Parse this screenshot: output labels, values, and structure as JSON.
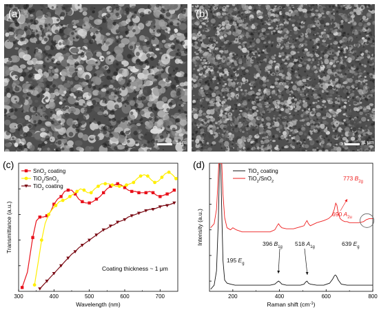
{
  "panels": {
    "a": {
      "label": "(a)",
      "scale_label": "1 μm"
    },
    "b": {
      "label": "(b)",
      "scale_label": "1 μm"
    },
    "c": {
      "label": "(c)"
    },
    "d": {
      "label": "(d)"
    }
  },
  "chart_data": [
    {
      "type": "line",
      "panel": "c",
      "xlabel": "Wavelength (nm)",
      "ylabel": "Transmittance (a.u.)",
      "xlim": [
        300,
        750
      ],
      "xticks": [
        300,
        400,
        500,
        600,
        700
      ],
      "annotation": "Coating thickness ~ 1 μm",
      "legend_position": "top-left",
      "series": [
        {
          "name_main": "SnO",
          "name_sub": "2",
          "name_rest": " coating",
          "color": "#e8101a",
          "marker": "square",
          "x": [
            310,
            325,
            340,
            350,
            360,
            370,
            380,
            390,
            400,
            410,
            420,
            430,
            440,
            450,
            460,
            470,
            480,
            490,
            500,
            510,
            520,
            530,
            540,
            550,
            560,
            570,
            580,
            590,
            600,
            610,
            620,
            630,
            640,
            650,
            660,
            670,
            680,
            690,
            700,
            710,
            720,
            730,
            740
          ],
          "y": [
            0.03,
            0.15,
            0.42,
            0.55,
            0.58,
            0.58,
            0.59,
            0.62,
            0.68,
            0.72,
            0.74,
            0.78,
            0.79,
            0.79,
            0.76,
            0.72,
            0.7,
            0.69,
            0.69,
            0.7,
            0.72,
            0.74,
            0.77,
            0.8,
            0.82,
            0.83,
            0.84,
            0.83,
            0.81,
            0.79,
            0.78,
            0.78,
            0.77,
            0.77,
            0.77,
            0.78,
            0.77,
            0.75,
            0.74,
            0.75,
            0.76,
            0.77,
            0.79
          ]
        },
        {
          "name_main": "TiO",
          "name_sub": "2",
          "name_rest": "/SnO",
          "name_sub2": "2",
          "color": "#ffee00",
          "marker": "circle",
          "x": [
            345,
            355,
            365,
            375,
            385,
            395,
            405,
            415,
            425,
            435,
            445,
            455,
            465,
            475,
            485,
            495,
            505,
            515,
            525,
            535,
            545,
            555,
            565,
            575,
            585,
            595,
            605,
            615,
            625,
            635,
            645,
            655,
            665,
            675,
            685,
            695,
            705,
            715,
            725,
            735,
            745
          ],
          "y": [
            0.05,
            0.22,
            0.4,
            0.53,
            0.6,
            0.64,
            0.67,
            0.7,
            0.71,
            0.72,
            0.74,
            0.76,
            0.78,
            0.8,
            0.79,
            0.77,
            0.77,
            0.8,
            0.82,
            0.84,
            0.84,
            0.84,
            0.83,
            0.82,
            0.82,
            0.82,
            0.83,
            0.84,
            0.85,
            0.88,
            0.9,
            0.91,
            0.9,
            0.87,
            0.85,
            0.86,
            0.89,
            0.92,
            0.93,
            0.91,
            0.88
          ]
        },
        {
          "name_main": "TiO",
          "name_sub": "2",
          "name_rest": " coating",
          "color": "#7a0a14",
          "marker": "triangle-down",
          "x": [
            360,
            370,
            380,
            390,
            400,
            410,
            420,
            430,
            440,
            450,
            460,
            470,
            480,
            490,
            500,
            510,
            520,
            530,
            540,
            550,
            560,
            570,
            580,
            590,
            600,
            610,
            620,
            630,
            640,
            650,
            660,
            670,
            680,
            690,
            700,
            710,
            720,
            730,
            740
          ],
          "y": [
            0.02,
            0.05,
            0.08,
            0.11,
            0.14,
            0.17,
            0.2,
            0.23,
            0.26,
            0.29,
            0.31,
            0.34,
            0.36,
            0.38,
            0.4,
            0.42,
            0.44,
            0.46,
            0.48,
            0.49,
            0.51,
            0.52,
            0.54,
            0.55,
            0.56,
            0.58,
            0.59,
            0.6,
            0.61,
            0.62,
            0.63,
            0.64,
            0.64,
            0.65,
            0.66,
            0.67,
            0.67,
            0.68,
            0.69
          ]
        }
      ]
    },
    {
      "type": "line",
      "panel": "d",
      "xlabel": "Raman shift (cm",
      "xlabel_sup": "-1",
      "xlabel_end": ")",
      "ylabel": "Intensity (a.u.)",
      "xlim": [
        100,
        800
      ],
      "xticks": [
        200,
        400,
        600,
        800
      ],
      "legend_position": "top-left",
      "series": [
        {
          "name_main": "TiO",
          "name_sub": "2",
          "name_rest": " coating",
          "color": "#111111",
          "x": [
            105,
            120,
            130,
            138,
            143,
            148,
            153,
            158,
            165,
            175,
            190,
            210,
            240,
            280,
            320,
            360,
            380,
            390,
            396,
            402,
            410,
            430,
            460,
            490,
            505,
            512,
            518,
            524,
            532,
            560,
            590,
            615,
            628,
            635,
            639,
            644,
            652,
            665,
            690,
            720,
            760,
            800
          ],
          "y": [
            0.02,
            0.06,
            0.2,
            0.7,
            1.25,
            1.25,
            0.75,
            0.3,
            0.11,
            0.08,
            0.07,
            0.06,
            0.06,
            0.06,
            0.06,
            0.06,
            0.07,
            0.09,
            0.1,
            0.09,
            0.07,
            0.06,
            0.06,
            0.06,
            0.07,
            0.09,
            0.1,
            0.08,
            0.07,
            0.06,
            0.06,
            0.08,
            0.12,
            0.15,
            0.16,
            0.15,
            0.11,
            0.07,
            0.06,
            0.06,
            0.06,
            0.06
          ]
        },
        {
          "name_main": "TiO",
          "name_sub": "2",
          "name_rest": "/SnO",
          "name_sub2": "2",
          "color": "#ee1c1c",
          "x": [
            105,
            120,
            130,
            136,
            140,
            143,
            148,
            153,
            158,
            165,
            175,
            190,
            200,
            215,
            240,
            280,
            320,
            360,
            380,
            390,
            396,
            402,
            410,
            430,
            460,
            490,
            505,
            512,
            518,
            524,
            532,
            560,
            590,
            610,
            625,
            635,
            641,
            646,
            652,
            660,
            670,
            680,
            690,
            700,
            720,
            740,
            760,
            773,
            785,
            800
          ],
          "y": [
            0.62,
            0.66,
            0.8,
            1.05,
            1.25,
            1.25,
            1.25,
            1.25,
            0.95,
            0.72,
            0.62,
            0.6,
            0.62,
            0.6,
            0.58,
            0.58,
            0.58,
            0.58,
            0.6,
            0.64,
            0.66,
            0.64,
            0.62,
            0.61,
            0.61,
            0.63,
            0.64,
            0.67,
            0.69,
            0.66,
            0.64,
            0.67,
            0.69,
            0.71,
            0.74,
            0.8,
            0.86,
            0.84,
            0.76,
            0.71,
            0.69,
            0.68,
            0.68,
            0.67,
            0.67,
            0.67,
            0.68,
            0.7,
            0.71,
            0.71
          ]
        }
      ],
      "annotations": [
        {
          "num": "195",
          "main": "E",
          "sub": "g",
          "color": "#111111",
          "x": 195
        },
        {
          "num": "396",
          "main": "B",
          "sub": "1g",
          "color": "#111111",
          "x": 396
        },
        {
          "num": "518",
          "main": "A",
          "sub": "1g",
          "color": "#111111",
          "x": 518
        },
        {
          "num": "639",
          "main": "E",
          "sub": "g",
          "color": "#111111",
          "x": 639
        },
        {
          "num": "690",
          "main": "A",
          "sub": "2u",
          "color": "#ee1c1c",
          "x": 690
        },
        {
          "num": "773",
          "main": "B",
          "sub": "2g",
          "color": "#ee1c1c",
          "x": 773
        }
      ]
    }
  ]
}
